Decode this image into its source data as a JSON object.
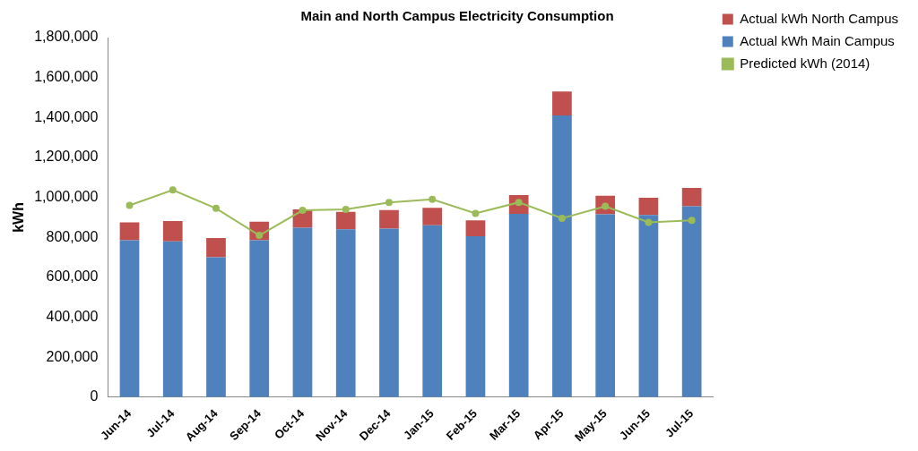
{
  "chart_data": {
    "type": "bar",
    "title": "Main and North Campus Electricity Consumption",
    "y_label": "kWh",
    "categories": [
      "Jun-14",
      "Jul-14",
      "Aug-14",
      "Sep-14",
      "Oct-14",
      "Nov-14",
      "Dec-14",
      "Jan-15",
      "Feb-15",
      "Mar-15",
      "Apr-15",
      "May-15",
      "Jun-15",
      "Jul-15"
    ],
    "series": [
      {
        "name": "Actual kWh North Campus",
        "color": "#c0504d",
        "type": "bar",
        "values": [
          90000,
          102000,
          97000,
          93000,
          92000,
          88000,
          94000,
          88000,
          80000,
          94000,
          120000,
          93000,
          86000,
          92000
        ]
      },
      {
        "name": "Actual kWh Main Campus",
        "color": "#4f81bd",
        "type": "bar",
        "values": [
          785000,
          780000,
          700000,
          785000,
          848000,
          840000,
          843000,
          860000,
          805000,
          918000,
          1410000,
          915000,
          912000,
          955000
        ]
      },
      {
        "name": "Predicted kWh (2014)",
        "color": "#9bbb59",
        "type": "line",
        "marker": "circle",
        "values": [
          960000,
          1037000,
          945000,
          810000,
          935000,
          940000,
          975000,
          990000,
          920000,
          975000,
          895000,
          955000,
          875000,
          885000
        ]
      }
    ],
    "stacked": true,
    "ylim": [
      0,
      1800000
    ],
    "yticks": [
      0,
      {
        "value": 200000,
        "label": "200,000"
      },
      {
        "value": 400000,
        "label": "400,000"
      },
      {
        "value": 600000,
        "label": "600,000"
      },
      {
        "value": 800000,
        "label": "800,000"
      },
      {
        "value": 1000000,
        "label": "1,000,000"
      },
      {
        "value": 1200000,
        "label": "1,200,000"
      },
      {
        "value": 1400000,
        "label": "1,400,000"
      },
      {
        "value": 1600000,
        "label": "1,600,000"
      },
      {
        "value": 1800000,
        "label": "1,800,000"
      }
    ],
    "grid": false,
    "legend": "right"
  }
}
